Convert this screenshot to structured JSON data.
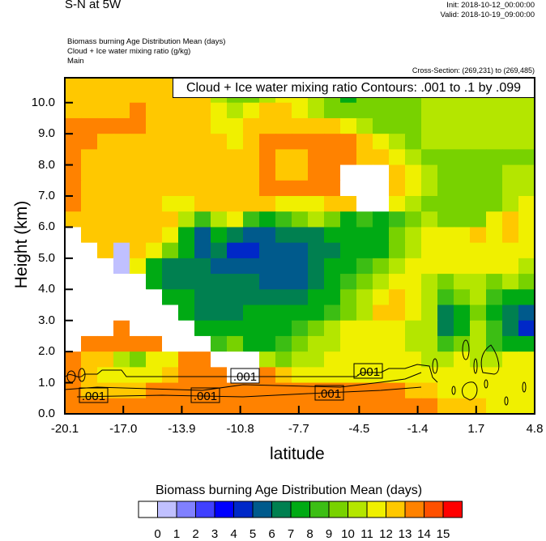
{
  "header": {
    "title": "S-N at 5W",
    "init": "Init: 2018-10-12_00:00:00",
    "valid": "Valid: 2018-10-19_09:00:00",
    "subtitle_lines": [
      "Biomass burning Age Distribution Mean   (days)",
      "Cloud + Ice water mixing ratio   (g/kg)",
      "Main"
    ],
    "cross_section": "Cross-Section: (269,231) to (269,485)"
  },
  "chart_data": [
    {
      "type": "heatmap",
      "title": "Biomass burning Age Distribution Mean  (days)",
      "xlabel": "latitude",
      "ylabel": "Height (km)",
      "xlim": [
        -20.1,
        4.8
      ],
      "ylim": [
        0,
        10.8
      ],
      "x_ticks": [
        "-20.1",
        "-17.0",
        "-13.9",
        "-10.8",
        "-7.7",
        "-4.5",
        "-1.4",
        "1.7",
        "4.8"
      ],
      "x_tick_values": [
        -20.1,
        -17.0,
        -13.9,
        -10.8,
        -7.7,
        -4.5,
        -1.4,
        1.7,
        4.8
      ],
      "y_ticks": [
        "0.0",
        "1.0",
        "2.0",
        "3.0",
        "4.0",
        "5.0",
        "6.0",
        "7.0",
        "8.0",
        "9.0",
        "10.0"
      ],
      "y_tick_values": [
        0,
        1,
        2,
        3,
        4,
        5,
        6,
        7,
        8,
        9,
        10
      ],
      "grid_height_step_km": 0.5,
      "values_top_row_first": [
        [
          12.5,
          12.5,
          12.5,
          12.5,
          12.5,
          12.5,
          12.5,
          12.5,
          12.5,
          11.5,
          9.5,
          9.5,
          9.5,
          10.5,
          10.5,
          10.5,
          9.5,
          9.5,
          7.5,
          9.5,
          9.5,
          9.5,
          10.5,
          10.5,
          10.5,
          10.5,
          10.5,
          10.5,
          10.5
        ],
        [
          12.5,
          12.5,
          12.5,
          12.5,
          12.5,
          12.5,
          12.5,
          12.5,
          12.5,
          10.5,
          9.5,
          9.5,
          10.5,
          11.5,
          11.5,
          10.5,
          9.5,
          7.5,
          9.5,
          9.5,
          9.5,
          9.5,
          10.5,
          10.5,
          10.5,
          10.5,
          10.5,
          10.5,
          10.5
        ],
        [
          12.5,
          12.5,
          12.5,
          12.5,
          13.5,
          12.5,
          12.5,
          12.5,
          12.5,
          11.5,
          10.5,
          11.5,
          12.5,
          12.5,
          11.5,
          10.5,
          9.5,
          9.5,
          9.5,
          9.5,
          9.5,
          9.5,
          10.5,
          10.5,
          10.5,
          10.5,
          10.5,
          10.5,
          10.5
        ],
        [
          13.5,
          13.5,
          13.5,
          13.5,
          13.5,
          12.5,
          12.5,
          12.5,
          12.5,
          11.5,
          11.5,
          12.5,
          12.5,
          12.5,
          12.5,
          12.5,
          12.5,
          11.5,
          10.5,
          9.5,
          9.5,
          9.5,
          10.5,
          10.5,
          10.5,
          10.5,
          10.5,
          10.5,
          10.5
        ],
        [
          13.5,
          13.5,
          12.5,
          12.5,
          12.5,
          12.5,
          12.5,
          12.5,
          12.5,
          12.5,
          11.5,
          12.5,
          13.5,
          13.5,
          13.5,
          13.5,
          13.5,
          13.5,
          12.5,
          11.5,
          10.5,
          9.5,
          10.5,
          10.5,
          10.5,
          10.5,
          10.5,
          10.5,
          10.5
        ],
        [
          13.5,
          12.5,
          12.5,
          12.5,
          12.5,
          12.5,
          12.5,
          12.5,
          12.5,
          12.5,
          12.5,
          12.5,
          13.5,
          12.5,
          12.5,
          13.5,
          13.5,
          13.5,
          12.5,
          12.5,
          11.5,
          10.5,
          9.5,
          9.5,
          9.5,
          9.5,
          9.5,
          9.5,
          9.5
        ],
        [
          13.5,
          12.5,
          12.5,
          12.5,
          12.5,
          12.5,
          12.5,
          12.5,
          12.5,
          12.5,
          12.5,
          12.5,
          13.5,
          12.5,
          12.5,
          13.5,
          13.5,
          null,
          null,
          null,
          12.5,
          11.5,
          10.5,
          9.5,
          9.5,
          9.5,
          9.5,
          10.5,
          10.5
        ],
        [
          13.5,
          12.5,
          12.5,
          12.5,
          12.5,
          12.5,
          12.5,
          12.5,
          12.5,
          12.5,
          12.5,
          12.5,
          13.5,
          13.5,
          13.5,
          13.5,
          13.5,
          null,
          null,
          null,
          12.5,
          11.5,
          10.5,
          9.5,
          9.5,
          9.5,
          9.5,
          10.5,
          10.5
        ],
        [
          13.5,
          12.5,
          12.5,
          12.5,
          12.5,
          12.5,
          11.5,
          11.5,
          12.5,
          12.5,
          12.5,
          12.5,
          12.5,
          11.5,
          11.5,
          11.5,
          12.5,
          12.5,
          null,
          null,
          11.5,
          10.5,
          9.5,
          9.5,
          9.5,
          9.5,
          9.5,
          10.5,
          11.5
        ],
        [
          12.5,
          12.5,
          12.5,
          12.5,
          12.5,
          12.5,
          12.5,
          10.5,
          8.5,
          10.5,
          11.5,
          8.5,
          7.5,
          8.5,
          9.5,
          10.5,
          9.5,
          7.5,
          8.5,
          7.5,
          8.5,
          9.5,
          10.5,
          9.5,
          9.5,
          9.5,
          11.5,
          12.5,
          11.5
        ],
        [
          null,
          12.5,
          12.5,
          12.5,
          12.5,
          12.5,
          11.5,
          7.5,
          5.5,
          7.5,
          6.5,
          5.5,
          5.5,
          6.5,
          6.5,
          6.5,
          7.5,
          7.5,
          7.5,
          7.5,
          9.5,
          10.5,
          11.5,
          11.5,
          11.5,
          12.5,
          11.5,
          12.5,
          11.5
        ],
        [
          null,
          null,
          12.5,
          0.5,
          12.5,
          11.5,
          9.5,
          7.5,
          5.5,
          6.5,
          4.5,
          4.5,
          5.5,
          5.5,
          5.5,
          6.5,
          6.5,
          7.5,
          7.5,
          7.5,
          9.5,
          10.5,
          11.5,
          11.5,
          11.5,
          11.5,
          11.5,
          11.5,
          11.5
        ],
        [
          null,
          null,
          null,
          0.5,
          11.5,
          7.5,
          6.5,
          6.5,
          6.5,
          5.5,
          5.5,
          5.5,
          5.5,
          5.5,
          5.5,
          6.5,
          7.5,
          7.5,
          8.5,
          9.5,
          10.5,
          11.5,
          11.5,
          11.5,
          11.5,
          11.5,
          11.5,
          11.5,
          10.5
        ],
        [
          null,
          null,
          null,
          null,
          null,
          7.5,
          6.5,
          6.5,
          6.5,
          6.5,
          6.5,
          6.5,
          5.5,
          5.5,
          5.5,
          6.5,
          7.5,
          8.5,
          9.5,
          10.5,
          11.5,
          11.5,
          10.5,
          9.5,
          10.5,
          10.5,
          9.5,
          10.5,
          9.5
        ],
        [
          null,
          null,
          null,
          null,
          null,
          null,
          7.5,
          7.5,
          6.5,
          6.5,
          6.5,
          6.5,
          6.5,
          6.5,
          6.5,
          7.5,
          7.5,
          9.5,
          10.5,
          11.5,
          12.5,
          11.5,
          10.5,
          8.5,
          9.5,
          10.5,
          8.5,
          7.5,
          7.5
        ],
        [
          null,
          null,
          null,
          null,
          null,
          null,
          null,
          7.5,
          6.5,
          6.5,
          6.5,
          7.5,
          7.5,
          7.5,
          7.5,
          7.5,
          8.5,
          9.5,
          10.5,
          12.5,
          12.5,
          11.5,
          10.5,
          6.5,
          7.5,
          9.5,
          7.5,
          6.5,
          5.5
        ],
        [
          null,
          null,
          null,
          13.5,
          null,
          null,
          null,
          null,
          7.5,
          7.5,
          7.5,
          7.5,
          7.5,
          7.5,
          8.5,
          9.5,
          10.5,
          11.5,
          11.5,
          11.5,
          11.5,
          10.5,
          10.5,
          6.5,
          7.5,
          10.5,
          8.5,
          6.5,
          4.5
        ],
        [
          null,
          13.5,
          13.5,
          13.5,
          13.5,
          13.5,
          null,
          null,
          null,
          8.5,
          9.5,
          7.5,
          7.5,
          8.5,
          9.5,
          10.5,
          10.5,
          11.5,
          11.5,
          11.5,
          11.5,
          10.5,
          10.5,
          8.5,
          9.5,
          10.5,
          8.5,
          7.5,
          7.5
        ],
        [
          13.5,
          12.5,
          12.5,
          10.5,
          9.5,
          11.5,
          11.5,
          13.5,
          13.5,
          null,
          null,
          null,
          10.5,
          9.5,
          10.5,
          10.5,
          11.5,
          11.5,
          11.5,
          11.5,
          11.5,
          11.5,
          10.5,
          10.5,
          11.5,
          10.5,
          10.5,
          11.5,
          11.5
        ],
        [
          13.5,
          12.5,
          11.5,
          11.5,
          11.5,
          11.5,
          12.5,
          13.5,
          13.5,
          13.5,
          null,
          null,
          13.5,
          12.5,
          11.5,
          11.5,
          11.5,
          11.5,
          11.5,
          11.5,
          11.5,
          11.5,
          11.5,
          11.5,
          11.5,
          11.5,
          11.5,
          11.5,
          11.5
        ],
        [
          13.5,
          12.5,
          12.5,
          12.5,
          12.5,
          13.5,
          13.5,
          13.5,
          13.5,
          13.5,
          13.5,
          13.5,
          13.5,
          13.5,
          13.5,
          13.5,
          13.5,
          13.5,
          13.5,
          13.5,
          13.5,
          12.5,
          12.5,
          11.5,
          11.5,
          11.5,
          11.5,
          11.5,
          11.5
        ],
        [
          13.5,
          13.5,
          13.5,
          13.5,
          13.5,
          13.5,
          13.5,
          13.5,
          13.5,
          13.5,
          13.5,
          13.5,
          13.5,
          13.5,
          13.5,
          13.5,
          13.5,
          13.5,
          13.5,
          13.5,
          13.5,
          13.5,
          13.5,
          12.5,
          12.5,
          12.5,
          11.5,
          11.5,
          11.5
        ]
      ],
      "missing_color": "#ffffff",
      "overlay": {
        "legend_text": "Cloud + Ice water mixing ratio Contours: .001 to .1 by .099",
        "contour_labels": [
          ".001",
          ".001",
          ".001",
          ".001",
          ".001"
        ]
      }
    },
    {
      "type": "colorbar",
      "title": "Biomass burning Age Distribution Mean  (days)",
      "labels": [
        "0",
        "1",
        "2",
        "3",
        "4",
        "5",
        "6",
        "7",
        "8",
        "9",
        "10",
        "11",
        "12",
        "13",
        "14",
        "15"
      ],
      "colors": [
        "#ffffff",
        "#c0c0ff",
        "#8080ff",
        "#4040ff",
        "#0000ff",
        "#0028c8",
        "#005a8c",
        "#008050",
        "#00aa14",
        "#3cbe14",
        "#78d200",
        "#b4e600",
        "#f0f000",
        "#ffc800",
        "#ff8200",
        "#ff5000",
        "#ff0000"
      ]
    }
  ]
}
